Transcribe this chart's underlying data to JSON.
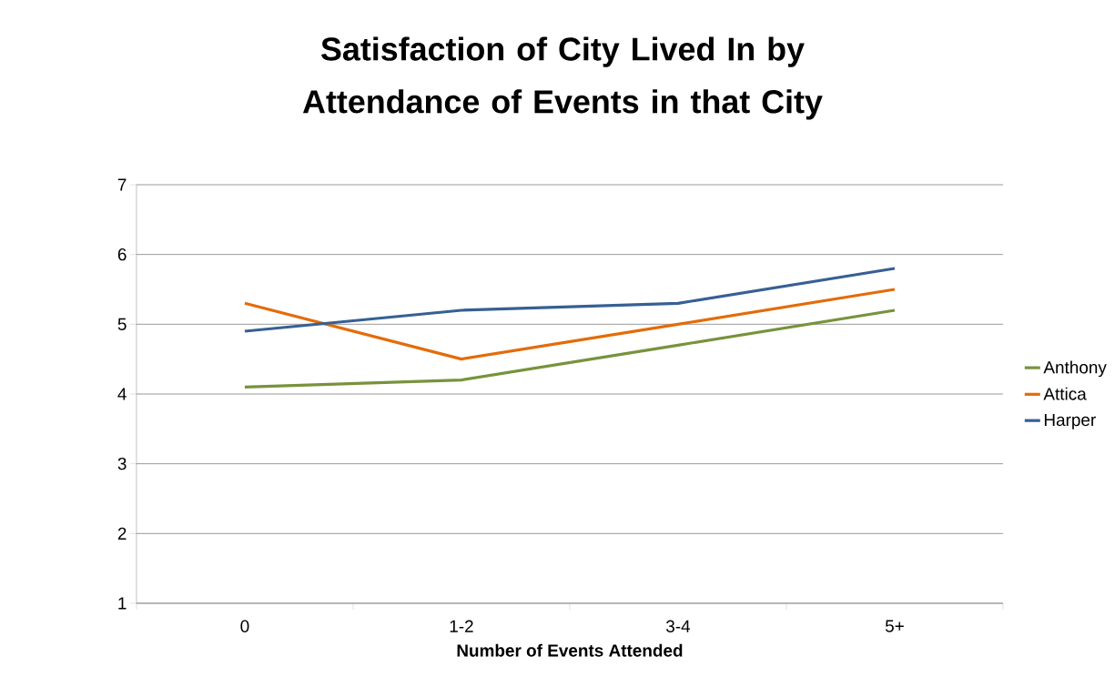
{
  "chart_data": {
    "type": "line",
    "title": "Satisfaction of City Lived In by Attendance of Events in that City",
    "xlabel": "Number of Events Attended",
    "categories": [
      "0",
      "1-2",
      "3-4",
      "5+"
    ],
    "series": [
      {
        "name": "Anthony",
        "color": "#77933c",
        "values": [
          4.1,
          4.2,
          4.7,
          5.2
        ]
      },
      {
        "name": "Attica",
        "color": "#e36c09",
        "values": [
          5.3,
          4.5,
          5.0,
          5.5
        ]
      },
      {
        "name": "Harper",
        "color": "#376092",
        "values": [
          4.9,
          5.2,
          5.3,
          5.8
        ]
      }
    ],
    "ylim": [
      1,
      7
    ],
    "yticks": [
      1,
      2,
      3,
      4,
      5,
      6,
      7
    ],
    "grid": "y",
    "legend": "right",
    "marker": "none",
    "line_style": "solid"
  }
}
